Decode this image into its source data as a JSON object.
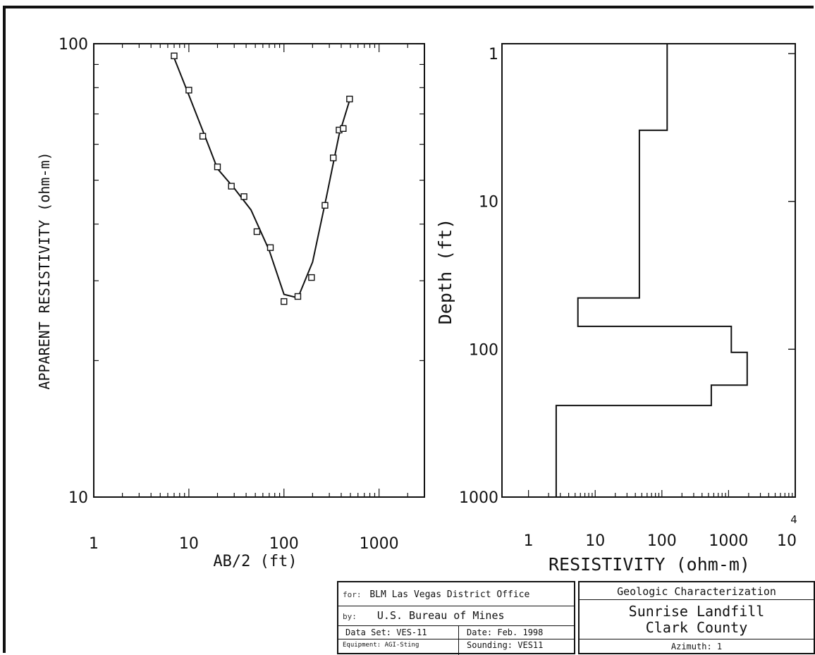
{
  "chart_data": [
    {
      "type": "scatter",
      "title": "",
      "xlabel": "AB/2 (ft)",
      "ylabel": "APPARENT RESISTIVITY (ohm-m)",
      "xscale": "log",
      "yscale": "log",
      "xlim": [
        1,
        3000
      ],
      "ylim": [
        10,
        100
      ],
      "x_ticks": [
        "1",
        "10",
        "100",
        "1000"
      ],
      "y_ticks": [
        "10",
        "100"
      ],
      "series": [
        {
          "marker": "square",
          "x": [
            7,
            10,
            14,
            20,
            28,
            38,
            52,
            72,
            100,
            140,
            195,
            270,
            330,
            380,
            420,
            490
          ],
          "y": [
            94,
            79,
            62.5,
            53.5,
            48.5,
            46,
            38.5,
            35.5,
            27,
            27.7,
            30.5,
            44,
            56,
            64.5,
            65,
            75.5
          ]
        },
        {
          "line": true,
          "x": [
            7,
            10,
            15,
            20,
            30,
            45,
            70,
            100,
            140,
            200,
            280,
            380,
            500
          ],
          "y": [
            93,
            77,
            62,
            53,
            48,
            43,
            35,
            28,
            27.5,
            33,
            46,
            63,
            76
          ]
        }
      ]
    },
    {
      "type": "line",
      "title": "",
      "xlabel": "RESISTIVITY (ohm-m)",
      "ylabel": "Depth (ft)",
      "xscale": "log",
      "yscale": "log",
      "y_inverted": true,
      "xlim": [
        0.4,
        10000
      ],
      "ylim": [
        1,
        1000
      ],
      "x_ticks": [
        "1",
        "10",
        "100",
        "1000",
        "10"
      ],
      "x_tick_exponent": "4",
      "y_ticks": [
        "1",
        "10",
        "100",
        "1000"
      ],
      "layers": [
        {
          "resistivity": 120,
          "top": 1,
          "bottom": 3.3
        },
        {
          "resistivity": 46,
          "top": 3.3,
          "bottom": 45
        },
        {
          "resistivity": 5.5,
          "top": 45,
          "bottom": 70
        },
        {
          "resistivity": 1100,
          "top": 70,
          "bottom": 105
        },
        {
          "resistivity": 1900,
          "top": 105,
          "bottom": 175
        },
        {
          "resistivity": 550,
          "top": 175,
          "bottom": 240
        },
        {
          "resistivity": 2.6,
          "top": 240,
          "bottom": 1000
        }
      ]
    }
  ],
  "title_block": {
    "for_label": "for:",
    "for_value": "BLM Las Vegas District Office",
    "by_label": "by:",
    "by_value": "U.S. Bureau of Mines",
    "data_set": "Data Set: VES-11",
    "date": "Date: Feb. 1998",
    "equipment": "Equipment: AGI-Sting",
    "sounding": "Sounding: VES11",
    "heading": "Geologic Characterization",
    "project_line1": "Sunrise Landfill",
    "project_line2": "Clark County",
    "azimuth": "Azimuth: 1"
  }
}
